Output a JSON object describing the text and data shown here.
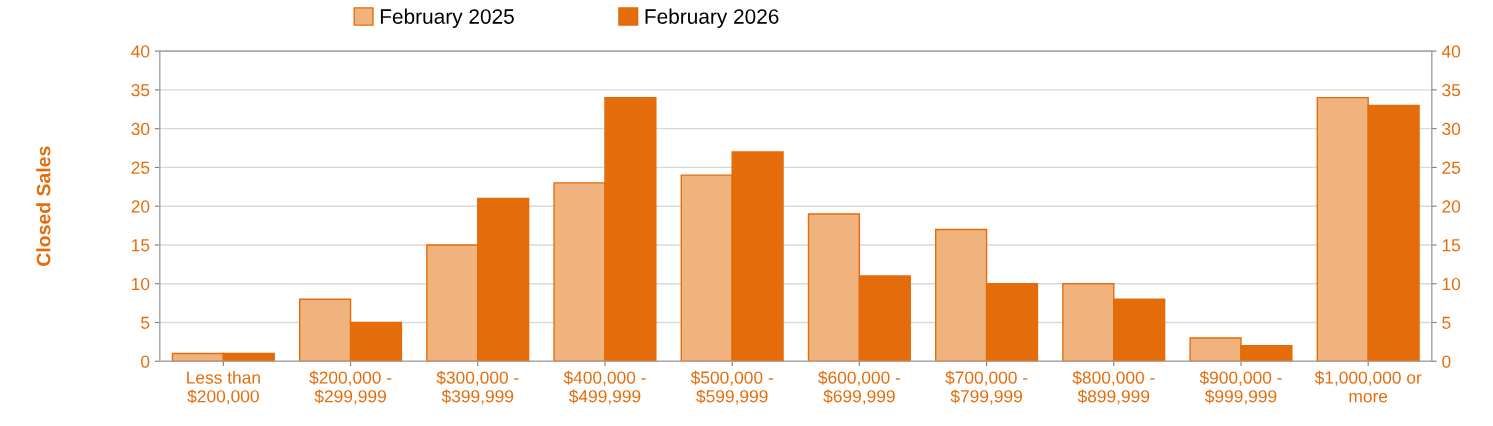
{
  "chart_data": {
    "type": "bar",
    "ylabel": "Closed Sales",
    "categories": [
      "Less than\n$200,000",
      "$200,000 -\n$299,999",
      "$300,000 -\n$399,999",
      "$400,000 -\n$499,999",
      "$500,000 -\n$599,999",
      "$600,000 -\n$699,999",
      "$700,000 -\n$799,999",
      "$800,000 -\n$899,999",
      "$900,000 -\n$999,999",
      "$1,000,000 or\nmore"
    ],
    "series": [
      {
        "name": "February 2025",
        "color": "#f1b37e",
        "values": [
          1,
          8,
          15,
          23,
          24,
          19,
          17,
          10,
          3,
          34
        ]
      },
      {
        "name": "February 2026",
        "color": "#e46c0a",
        "values": [
          1,
          5,
          21,
          34,
          27,
          11,
          10,
          8,
          2,
          33
        ]
      }
    ],
    "ylim": [
      0,
      40
    ],
    "yticks": [
      0,
      5,
      10,
      15,
      20,
      25,
      30,
      35,
      40
    ],
    "y2lim": [
      0,
      40
    ],
    "y2ticks": [
      0,
      5,
      10,
      15,
      20,
      25,
      30,
      35,
      40
    ],
    "grid": "y",
    "legend": "top"
  }
}
